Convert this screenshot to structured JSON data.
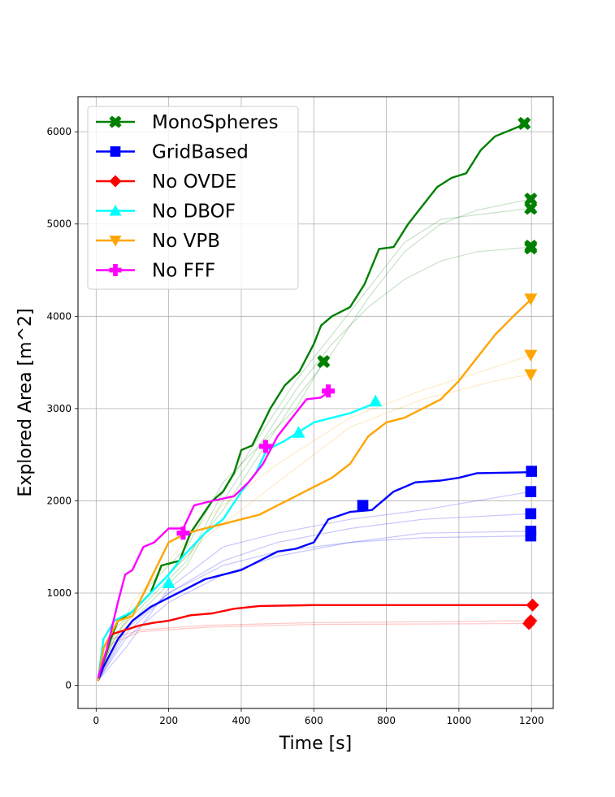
{
  "chart_data": {
    "type": "line",
    "title": "",
    "xlabel": "Time [s]",
    "ylabel": "Explored Area [m^2]",
    "xlim": [
      -50,
      1260
    ],
    "ylim": [
      -250,
      6380
    ],
    "xticks": [
      0,
      200,
      400,
      600,
      800,
      1000,
      1200
    ],
    "yticks": [
      0,
      1000,
      2000,
      3000,
      4000,
      5000,
      6000
    ],
    "grid": true,
    "legend_position": "top-left",
    "series": [
      {
        "name": "MonoSpheres",
        "color": "#008000",
        "marker": "x",
        "values": [
          [
            5,
            60
          ],
          [
            20,
            250
          ],
          [
            40,
            500
          ],
          [
            60,
            700
          ],
          [
            100,
            800
          ],
          [
            150,
            1000
          ],
          [
            180,
            1300
          ],
          [
            230,
            1350
          ],
          [
            260,
            1650
          ],
          [
            320,
            2000
          ],
          [
            350,
            2100
          ],
          [
            380,
            2300
          ],
          [
            400,
            2550
          ],
          [
            430,
            2600
          ],
          [
            480,
            3000
          ],
          [
            520,
            3250
          ],
          [
            560,
            3400
          ],
          [
            600,
            3700
          ],
          [
            620,
            3900
          ],
          [
            650,
            4000
          ],
          [
            700,
            4100
          ],
          [
            740,
            4350
          ],
          [
            780,
            4730
          ],
          [
            820,
            4750
          ],
          [
            860,
            5000
          ],
          [
            900,
            5200
          ],
          [
            940,
            5400
          ],
          [
            980,
            5500
          ],
          [
            1020,
            5550
          ],
          [
            1060,
            5800
          ],
          [
            1100,
            5950
          ],
          [
            1180,
            6080
          ]
        ],
        "end_markers": [
          [
            1180,
            6090
          ],
          [
            627,
            3510
          ],
          [
            1198,
            5270
          ],
          [
            1198,
            5170
          ],
          [
            1198,
            4760
          ],
          [
            1198,
            4740
          ]
        ],
        "faint_runs": [
          [
            [
              5,
              100
            ],
            [
              50,
              500
            ],
            [
              150,
              900
            ],
            [
              250,
              1300
            ],
            [
              350,
              2000
            ],
            [
              450,
              2600
            ],
            [
              550,
              3200
            ],
            [
              650,
              3700
            ],
            [
              750,
              4100
            ],
            [
              850,
              4400
            ],
            [
              950,
              4600
            ],
            [
              1050,
              4700
            ],
            [
              1198,
              4750
            ]
          ],
          [
            [
              5,
              100
            ],
            [
              50,
              600
            ],
            [
              150,
              1000
            ],
            [
              250,
              1400
            ],
            [
              350,
              1900
            ],
            [
              450,
              2500
            ],
            [
              550,
              3100
            ],
            [
              650,
              3600
            ],
            [
              750,
              4200
            ],
            [
              850,
              4700
            ],
            [
              950,
              5000
            ],
            [
              1050,
              5150
            ],
            [
              1198,
              5270
            ]
          ],
          [
            [
              5,
              100
            ],
            [
              50,
              550
            ],
            [
              150,
              950
            ],
            [
              250,
              1350
            ],
            [
              350,
              2100
            ],
            [
              450,
              2700
            ],
            [
              550,
              3300
            ],
            [
              650,
              3800
            ],
            [
              750,
              4300
            ],
            [
              850,
              4800
            ],
            [
              950,
              5050
            ],
            [
              1050,
              5100
            ],
            [
              1198,
              5170
            ]
          ],
          [
            [
              5,
              100
            ],
            [
              50,
              500
            ],
            [
              150,
              1100
            ],
            [
              250,
              1500
            ],
            [
              350,
              2200
            ],
            [
              450,
              2600
            ],
            [
              550,
              3000
            ],
            [
              627,
              3510
            ]
          ]
        ]
      },
      {
        "name": "GridBased",
        "color": "#0000ff",
        "marker": "s",
        "values": [
          [
            5,
            50
          ],
          [
            20,
            200
          ],
          [
            60,
            500
          ],
          [
            100,
            700
          ],
          [
            150,
            850
          ],
          [
            200,
            950
          ],
          [
            250,
            1050
          ],
          [
            300,
            1150
          ],
          [
            350,
            1200
          ],
          [
            400,
            1250
          ],
          [
            450,
            1350
          ],
          [
            500,
            1450
          ],
          [
            550,
            1480
          ],
          [
            600,
            1550
          ],
          [
            640,
            1800
          ],
          [
            700,
            1880
          ],
          [
            760,
            1900
          ],
          [
            820,
            2100
          ],
          [
            880,
            2200
          ],
          [
            950,
            2220
          ],
          [
            1000,
            2250
          ],
          [
            1050,
            2300
          ],
          [
            1198,
            2310
          ]
        ],
        "end_markers": [
          [
            735,
            1950
          ],
          [
            1200,
            2320
          ],
          [
            1198,
            2100
          ],
          [
            1198,
            1860
          ],
          [
            1198,
            1670
          ],
          [
            1198,
            1620
          ]
        ],
        "faint_runs": [
          [
            [
              5,
              50
            ],
            [
              80,
              600
            ],
            [
              200,
              1000
            ],
            [
              350,
              1300
            ],
            [
              500,
              1450
            ],
            [
              700,
              1550
            ],
            [
              900,
              1600
            ],
            [
              1198,
              1620
            ]
          ],
          [
            [
              5,
              50
            ],
            [
              80,
              500
            ],
            [
              200,
              900
            ],
            [
              350,
              1200
            ],
            [
              500,
              1400
            ],
            [
              700,
              1550
            ],
            [
              900,
              1650
            ],
            [
              1198,
              1670
            ]
          ],
          [
            [
              5,
              50
            ],
            [
              80,
              550
            ],
            [
              200,
              1000
            ],
            [
              350,
              1350
            ],
            [
              500,
              1550
            ],
            [
              700,
              1700
            ],
            [
              900,
              1800
            ],
            [
              1198,
              1860
            ]
          ],
          [
            [
              5,
              50
            ],
            [
              80,
              400
            ],
            [
              200,
              1050
            ],
            [
              350,
              1500
            ],
            [
              500,
              1650
            ],
            [
              700,
              1800
            ],
            [
              900,
              1900
            ],
            [
              1198,
              2100
            ]
          ]
        ]
      },
      {
        "name": "No OVDE",
        "color": "#ff0000",
        "marker": "D",
        "values": [
          [
            5,
            50
          ],
          [
            20,
            400
          ],
          [
            40,
            550
          ],
          [
            80,
            600
          ],
          [
            120,
            650
          ],
          [
            160,
            680
          ],
          [
            200,
            700
          ],
          [
            260,
            760
          ],
          [
            320,
            780
          ],
          [
            380,
            830
          ],
          [
            450,
            860
          ],
          [
            600,
            870
          ],
          [
            800,
            870
          ],
          [
            1200,
            870
          ]
        ],
        "end_markers": [
          [
            1203,
            870
          ],
          [
            1198,
            700
          ],
          [
            1193,
            670
          ]
        ],
        "faint_runs": [
          [
            [
              5,
              50
            ],
            [
              40,
              500
            ],
            [
              120,
              600
            ],
            [
              300,
              650
            ],
            [
              600,
              680
            ],
            [
              1198,
              700
            ]
          ],
          [
            [
              5,
              50
            ],
            [
              40,
              450
            ],
            [
              120,
              580
            ],
            [
              300,
              630
            ],
            [
              600,
              660
            ],
            [
              1193,
              670
            ]
          ]
        ]
      },
      {
        "name": "No DBOF",
        "color": "#00ffff",
        "marker": "^",
        "values": [
          [
            5,
            60
          ],
          [
            20,
            500
          ],
          [
            50,
            700
          ],
          [
            100,
            800
          ],
          [
            150,
            1000
          ],
          [
            200,
            1200
          ],
          [
            240,
            1400
          ],
          [
            300,
            1650
          ],
          [
            350,
            1800
          ],
          [
            400,
            2100
          ],
          [
            440,
            2300
          ],
          [
            470,
            2550
          ],
          [
            520,
            2650
          ],
          [
            560,
            2750
          ],
          [
            600,
            2850
          ],
          [
            650,
            2900
          ],
          [
            700,
            2950
          ],
          [
            770,
            3060
          ]
        ],
        "end_markers": [
          [
            200,
            1110
          ],
          [
            558,
            2740
          ],
          [
            770,
            3080
          ]
        ],
        "faint_runs": []
      },
      {
        "name": "No VPB",
        "color": "#ffa500",
        "marker": "v",
        "values": [
          [
            5,
            50
          ],
          [
            20,
            400
          ],
          [
            60,
            700
          ],
          [
            100,
            750
          ],
          [
            200,
            1550
          ],
          [
            250,
            1650
          ],
          [
            300,
            1700
          ],
          [
            350,
            1750
          ],
          [
            400,
            1800
          ],
          [
            450,
            1850
          ],
          [
            500,
            1950
          ],
          [
            550,
            2050
          ],
          [
            600,
            2150
          ],
          [
            650,
            2250
          ],
          [
            700,
            2400
          ],
          [
            750,
            2700
          ],
          [
            800,
            2850
          ],
          [
            850,
            2900
          ],
          [
            900,
            3000
          ],
          [
            950,
            3100
          ],
          [
            1000,
            3300
          ],
          [
            1050,
            3550
          ],
          [
            1100,
            3800
          ],
          [
            1150,
            4000
          ],
          [
            1198,
            4180
          ]
        ],
        "end_markers": [
          [
            1198,
            4190
          ],
          [
            1198,
            3580
          ],
          [
            1198,
            3370
          ]
        ],
        "faint_runs": [
          [
            [
              5,
              50
            ],
            [
              100,
              800
            ],
            [
              300,
              1600
            ],
            [
              500,
              2200
            ],
            [
              700,
              2800
            ],
            [
              900,
              3100
            ],
            [
              1100,
              3300
            ],
            [
              1198,
              3370
            ]
          ],
          [
            [
              5,
              50
            ],
            [
              100,
              900
            ],
            [
              300,
              1800
            ],
            [
              500,
              2400
            ],
            [
              700,
              2900
            ],
            [
              900,
              3200
            ],
            [
              1100,
              3450
            ],
            [
              1198,
              3580
            ]
          ]
        ]
      },
      {
        "name": "No FFF",
        "color": "#ff00ff",
        "marker": "P",
        "values": [
          [
            5,
            80
          ],
          [
            30,
            400
          ],
          [
            60,
            900
          ],
          [
            80,
            1200
          ],
          [
            100,
            1250
          ],
          [
            130,
            1500
          ],
          [
            160,
            1550
          ],
          [
            200,
            1700
          ],
          [
            240,
            1700
          ],
          [
            270,
            1950
          ],
          [
            320,
            2000
          ],
          [
            380,
            2050
          ],
          [
            420,
            2200
          ],
          [
            460,
            2400
          ],
          [
            500,
            2700
          ],
          [
            540,
            2900
          ],
          [
            580,
            3100
          ],
          [
            620,
            3120
          ],
          [
            640,
            3180
          ]
        ],
        "end_markers": [
          [
            240,
            1650
          ],
          [
            467,
            2590
          ],
          [
            640,
            3190
          ]
        ],
        "faint_runs": []
      }
    ]
  }
}
